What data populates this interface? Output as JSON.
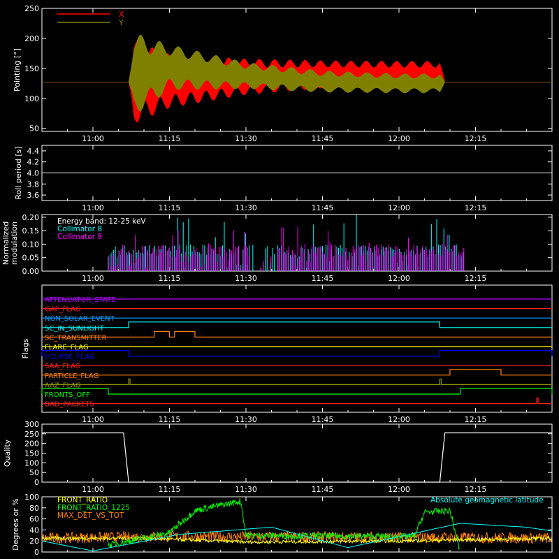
{
  "time_ticks": [
    "11:00",
    "11:15",
    "11:30",
    "11:45",
    "12:00",
    "12:15"
  ],
  "panels": {
    "pointing": {
      "ylabel": "Pointing [°]",
      "yticks": [
        "50",
        "100",
        "150",
        "200",
        "250"
      ],
      "ylim": [
        45,
        250
      ],
      "legend": [
        "X",
        "Y"
      ],
      "colors": {
        "X": "#ff0000",
        "Y": "#808000"
      }
    },
    "roll": {
      "ylabel": "Roll period [s]",
      "yticks": [
        "3.6",
        "3.8",
        "4.0",
        "4.2",
        "4.4"
      ],
      "ylim": [
        3.5,
        4.5
      ],
      "color": "#ffffff"
    },
    "modulation": {
      "ylabel_line1": "Normalized",
      "ylabel_line2": "modulation",
      "yticks": [
        "0.00",
        "0.05",
        "0.10",
        "0.15",
        "0.20"
      ],
      "ylim": [
        0,
        0.21
      ],
      "legend": [
        "Energy band: 12-25 keV",
        "Collimator 8",
        "Collimator 9"
      ],
      "colors": {
        "c8": "#00ffff",
        "c9": "#ff00ff",
        "energy": "#ffffff"
      }
    },
    "flags": {
      "ylabel": "Flags",
      "items": [
        {
          "label": "ATTENUATOR_STATE",
          "color": "#b000ff"
        },
        {
          "label": "GAP_FLAG",
          "color": "#ff2020"
        },
        {
          "label": "NON_SOLAR_EVENT",
          "color": "#00a0ff"
        },
        {
          "label": "SC_IN_SUNLIGHT",
          "color": "#00ffff"
        },
        {
          "label": "SC_TRANSMITTER",
          "color": "#ff8000"
        },
        {
          "label": "FLARE_FLAG",
          "color": "#ffff00"
        },
        {
          "label": "ECLIPSE_FLAG",
          "color": "#0000ff"
        },
        {
          "label": "SAA_FLAG",
          "color": "#ff2020"
        },
        {
          "label": "PARTICLE_FLAG",
          "color": "#ff8000"
        },
        {
          "label": "AAZ_FLAG",
          "color": "#909000"
        },
        {
          "label": "FRONTS_OFF",
          "color": "#00ff00"
        },
        {
          "label": "BAD_PACKETS",
          "color": "#ff2020"
        }
      ]
    },
    "quality": {
      "ylabel": "Quality",
      "yticks": [
        "0",
        "50",
        "100",
        "150",
        "200",
        "250",
        "300"
      ],
      "ylim": [
        0,
        300
      ],
      "color": "#ffffff"
    },
    "ratios": {
      "ylabel": "Degrees or %",
      "yticks": [
        "0",
        "20",
        "40",
        "60",
        "80",
        "100"
      ],
      "ylim": [
        0,
        100
      ],
      "legend": [
        "FRONT_RATIO",
        "FRONT_RATIO_1225",
        "MAX_DET_VS_TOT"
      ],
      "annotation": "Absolute geomagnetic latitude",
      "colors": {
        "front_ratio": "#ffff00",
        "front_ratio_1225": "#00ff00",
        "max_det": "#ff8000",
        "geomag": "#00ffff"
      }
    }
  },
  "chart_data": [
    {
      "type": "line",
      "x_unit": "UT time",
      "x_range": [
        "10:50",
        "12:30"
      ],
      "ylabel": "Pointing [°]",
      "ylim": [
        45,
        250
      ],
      "series": [
        {
          "name": "X",
          "x": [
            "10:50",
            "11:07",
            "11:08",
            "11:15",
            "11:30",
            "11:45",
            "12:00",
            "12:08",
            "12:09",
            "12:30"
          ],
          "y_center": [
            127,
            127,
            127,
            129,
            136,
            140,
            140,
            140,
            127,
            127
          ],
          "y_amplitude": [
            0,
            0,
            70,
            45,
            30,
            23,
            22,
            22,
            0,
            0
          ]
        },
        {
          "name": "Y",
          "x": [
            "10:50",
            "11:07",
            "11:08",
            "11:15",
            "11:30",
            "11:45",
            "12:00",
            "12:08",
            "12:09",
            "12:30"
          ],
          "y_center": [
            127,
            127,
            140,
            152,
            138,
            128,
            125,
            125,
            127,
            127
          ],
          "y_amplitude": [
            0,
            0,
            70,
            38,
            22,
            18,
            16,
            16,
            0,
            0
          ]
        }
      ]
    },
    {
      "type": "line",
      "ylabel": "Roll period [s]",
      "ylim": [
        3.5,
        4.5
      ],
      "series": [
        {
          "name": "",
          "x": [
            "10:50",
            "12:30"
          ],
          "y": [
            4.0,
            4.0
          ]
        }
      ]
    },
    {
      "type": "bar",
      "ylabel": "Normalized modulation",
      "ylim": [
        0,
        0.21
      ],
      "series": [
        {
          "name": "Collimator 8",
          "x_range": [
            "11:03",
            "12:13"
          ],
          "typical": 0.09,
          "max": 0.21
        },
        {
          "name": "Collimator 9",
          "x_range": [
            "11:03",
            "12:13"
          ],
          "typical": 0.09,
          "max": 0.17
        }
      ]
    },
    {
      "type": "line",
      "ylabel": "Flags",
      "series": [
        {
          "name": "SC_IN_SUNLIGHT",
          "on_intervals": [
            [
              "11:07",
              "12:08"
            ]
          ]
        },
        {
          "name": "SC_TRANSMITTER",
          "on_intervals": [
            [
              "11:12",
              "11:15"
            ],
            [
              "11:16",
              "11:20"
            ]
          ]
        },
        {
          "name": "ECLIPSE_FLAG",
          "on_intervals": [
            [
              "10:50",
              "11:07"
            ],
            [
              "12:08",
              "12:30"
            ]
          ]
        },
        {
          "name": "PARTICLE_FLAG",
          "on_intervals": [
            [
              "12:10",
              "12:20"
            ]
          ]
        },
        {
          "name": "AAZ_FLAG",
          "on_intervals": [
            [
              "11:07",
              "11:07"
            ],
            [
              "12:08",
              "12:08"
            ]
          ]
        },
        {
          "name": "FRONTS_OFF",
          "on_intervals": [
            [
              "10:50",
              "11:03"
            ],
            [
              "12:12",
              "12:30"
            ]
          ]
        },
        {
          "name": "BAD_PACKETS",
          "on_intervals": [
            [
              "12:27",
              "12:27"
            ]
          ]
        }
      ]
    },
    {
      "type": "line",
      "ylabel": "Quality",
      "ylim": [
        0,
        300
      ],
      "series": [
        {
          "name": "",
          "x": [
            "10:50",
            "11:06",
            "11:07",
            "12:08",
            "12:09",
            "12:30"
          ],
          "y": [
            255,
            255,
            0,
            0,
            255,
            255
          ]
        }
      ]
    },
    {
      "type": "line",
      "ylabel": "Degrees or %",
      "ylim": [
        0,
        100
      ],
      "series": [
        {
          "name": "FRONT_RATIO",
          "x": [
            "10:50",
            "11:10",
            "11:30",
            "12:00",
            "12:30"
          ],
          "y": [
            25,
            25,
            18,
            20,
            25
          ]
        },
        {
          "name": "FRONT_RATIO_1225",
          "x": [
            "11:03",
            "11:15",
            "11:20",
            "11:25",
            "11:29",
            "11:30",
            "12:03",
            "12:05",
            "12:10",
            "12:12"
          ],
          "y": [
            12,
            35,
            75,
            85,
            92,
            30,
            28,
            72,
            75,
            0
          ]
        },
        {
          "name": "MAX_DET_VS_TOT",
          "x": [
            "10:50",
            "11:15",
            "11:45",
            "12:15",
            "12:30"
          ],
          "y": [
            25,
            28,
            27,
            26,
            25
          ]
        },
        {
          "name": "Absolute geomagnetic latitude",
          "x": [
            "10:50",
            "11:00",
            "11:17",
            "11:35",
            "11:50",
            "12:00",
            "12:12",
            "12:25",
            "12:30"
          ],
          "y": [
            20,
            2,
            32,
            45,
            8,
            28,
            52,
            45,
            38
          ]
        }
      ]
    }
  ]
}
